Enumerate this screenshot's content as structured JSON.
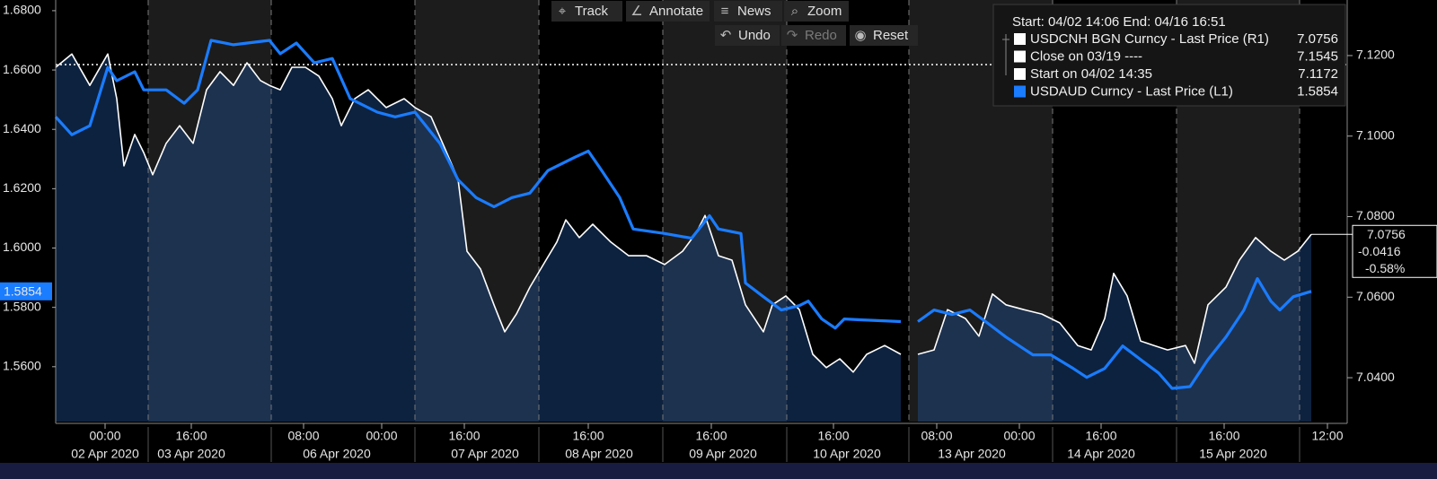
{
  "toolbar": {
    "row1": [
      "Track",
      "Annotate",
      "News",
      "Zoom"
    ],
    "row2": [
      "Undo",
      "Redo",
      "Reset"
    ]
  },
  "chart_data": {
    "type": "line",
    "xlim": [
      0,
      143.8
    ],
    "ylim": [
      1.5415,
      1.6836
    ],
    "y2lim": [
      7.0291,
      7.1338
    ],
    "yticks": [
      {
        "value": 1.56,
        "label": "1.5600"
      },
      {
        "value": 1.58,
        "label": "1.5800"
      },
      {
        "value": 1.6,
        "label": "1.6000"
      },
      {
        "value": 1.62,
        "label": "1.6200"
      },
      {
        "value": 1.64,
        "label": "1.6400"
      },
      {
        "value": 1.66,
        "label": "1.6600"
      },
      {
        "value": 1.68,
        "label": "1.6800"
      }
    ],
    "y2ticks": [
      {
        "value": 7.04,
        "label": "7.0400"
      },
      {
        "value": 7.06,
        "label": "7.0600"
      },
      {
        "value": 7.08,
        "label": "7.0800"
      },
      {
        "value": 7.1,
        "label": "7.1000"
      },
      {
        "value": 7.12,
        "label": "7.1200"
      }
    ],
    "xticks": [
      {
        "value": 5.5,
        "label": "00:00"
      },
      {
        "value": 15.1,
        "label": "16:00"
      },
      {
        "value": 27.6,
        "label": "08:00"
      },
      {
        "value": 36.3,
        "label": "00:00"
      },
      {
        "value": 45.5,
        "label": "16:00"
      },
      {
        "value": 59.3,
        "label": "16:00"
      },
      {
        "value": 73,
        "label": "16:00"
      },
      {
        "value": 86.6,
        "label": "16:00"
      },
      {
        "value": 98.1,
        "label": "08:00"
      },
      {
        "value": 107.3,
        "label": "00:00"
      },
      {
        "value": 116.4,
        "label": "16:00"
      },
      {
        "value": 130.1,
        "label": "16:00"
      },
      {
        "value": 141.6,
        "label": "12:00"
      }
    ],
    "date_labels": [
      {
        "value": 5.5,
        "label": "02 Apr 2020"
      },
      {
        "value": 15.1,
        "label": "03 Apr 2020"
      },
      {
        "value": 31.3,
        "label": "06 Apr 2020"
      },
      {
        "value": 47.8,
        "label": "07 Apr 2020"
      },
      {
        "value": 60.5,
        "label": "08 Apr 2020"
      },
      {
        "value": 74.3,
        "label": "09 Apr 2020"
      },
      {
        "value": 88.1,
        "label": "10 Apr 2020"
      },
      {
        "value": 102,
        "label": "13 Apr 2020"
      },
      {
        "value": 116.4,
        "label": "14 Apr 2020"
      },
      {
        "value": 131.1,
        "label": "15 Apr 2020"
      }
    ],
    "series": [
      {
        "name": "USDCNH BGN Curncy - Last Price (R1)",
        "color": "#ffffff",
        "axis": "y2",
        "x": [
          0,
          1.8,
          3.8,
          5.8,
          6.8,
          7.6,
          8.8,
          9.8,
          10.8,
          12.3,
          13.8,
          15.3,
          16.8,
          18.3,
          19.8,
          21.3,
          22.8,
          23.8,
          25,
          26.3,
          27.8,
          29.3,
          30.8,
          31.8,
          33.3,
          34.8,
          36.8,
          38.8,
          40,
          41.8,
          43.3,
          44.8,
          45.8,
          47.3,
          48.8,
          50,
          51.3,
          52.8,
          54.3,
          55.8,
          56.8,
          58.3,
          59.8,
          61.8,
          63.8,
          65.8,
          67.8,
          69.8,
          71.3,
          72.3,
          73.8,
          75.3,
          76.8,
          78.8,
          79.8,
          81.3,
          82.8,
          84.3,
          85.8,
          87.3,
          88.8,
          90.3,
          92.3,
          94.1,
          95,
          96,
          97.8,
          99.3,
          101.3,
          102.8,
          104.3,
          105.8,
          107.8,
          109.8,
          111.8,
          113.8,
          115.3,
          116.8,
          117.8,
          119.3,
          120.8,
          122.3,
          123.8,
          125.8,
          126.8,
          128.3,
          130.3,
          131.8,
          133.6,
          135.3,
          136.8,
          138.3,
          139.8
        ],
        "values": [
          7.1171,
          7.1204,
          7.1126,
          7.1204,
          7.1093,
          7.0926,
          7.1004,
          7.0959,
          7.0904,
          7.0982,
          7.1026,
          7.0982,
          7.1115,
          7.116,
          7.1126,
          7.1182,
          7.1138,
          7.1126,
          7.1115,
          7.1171,
          7.1171,
          7.1149,
          7.1093,
          7.1026,
          7.1093,
          7.1115,
          7.1071,
          7.1093,
          7.1071,
          7.1048,
          7.0971,
          7.0893,
          7.0714,
          7.067,
          7.0581,
          7.0514,
          7.0558,
          7.0625,
          7.0681,
          7.0737,
          7.0792,
          7.0748,
          7.0781,
          7.0737,
          7.0703,
          7.0703,
          7.0681,
          7.0714,
          7.0759,
          7.0803,
          7.0703,
          7.0692,
          7.0581,
          7.0514,
          7.0581,
          7.0603,
          7.0569,
          7.0458,
          7.0425,
          7.0447,
          7.0414,
          7.0458,
          7.048,
          7.0458,
          null,
          7.0458,
          7.0469,
          7.0569,
          7.0547,
          7.0503,
          7.0608,
          7.0581,
          7.0569,
          7.0558,
          7.0536,
          7.048,
          7.0469,
          7.0547,
          7.0659,
          7.0603,
          7.0491,
          7.048,
          7.0469,
          7.048,
          7.0436,
          7.0581,
          7.0625,
          7.0692,
          7.0748,
          7.0714,
          7.0692,
          7.0714,
          7.0756
        ]
      },
      {
        "name": "USDAUD Curncy - Last Price (L1)",
        "color": "#1a7cff",
        "axis": "y",
        "x": [
          0,
          1.8,
          3.8,
          5.8,
          6.8,
          8.8,
          9.8,
          12.3,
          14.3,
          15.8,
          17.3,
          19.8,
          23.8,
          25,
          26.8,
          28.8,
          30.8,
          32.8,
          35.8,
          37.8,
          40,
          42.8,
          44.8,
          46.8,
          48.8,
          50.8,
          52.8,
          54.8,
          57.8,
          59.3,
          60.8,
          62.8,
          64.3,
          67.8,
          70.8,
          72.8,
          73.8,
          76.3,
          76.8,
          78.8,
          80.8,
          82.8,
          83.8,
          85.3,
          86.8,
          87.8,
          89.8,
          94.1,
          95,
          96,
          97.8,
          99.8,
          101.8,
          103.8,
          105.8,
          108.8,
          110.8,
          113.3,
          114.8,
          116.8,
          118.8,
          120.8,
          122.8,
          124.3,
          126.3,
          128.3,
          130.3,
          132.3,
          133.8,
          135.3,
          136.3,
          137.8,
          139.8
        ],
        "values": [
          1.6442,
          1.6382,
          1.6412,
          1.6609,
          1.6564,
          1.6594,
          1.6533,
          1.6533,
          1.6488,
          1.6533,
          1.67,
          1.6685,
          1.67,
          1.6655,
          1.6691,
          1.6624,
          1.6639,
          1.6503,
          1.6458,
          1.6442,
          1.6458,
          1.6352,
          1.623,
          1.617,
          1.6139,
          1.617,
          1.6185,
          1.6261,
          1.6306,
          1.6327,
          1.6261,
          1.617,
          1.6064,
          1.6049,
          1.6033,
          1.6109,
          1.6064,
          1.6049,
          1.5882,
          1.5836,
          1.5791,
          1.5806,
          1.5821,
          1.5761,
          1.573,
          1.5761,
          1.5758,
          1.5752,
          null,
          1.5752,
          1.5791,
          1.5776,
          1.5791,
          1.5746,
          1.57,
          1.564,
          1.564,
          1.5594,
          1.5564,
          1.5594,
          1.567,
          1.5624,
          1.5579,
          1.5527,
          1.5533,
          1.5624,
          1.57,
          1.5791,
          1.5897,
          1.5821,
          1.5791,
          1.5836,
          1.5854
        ]
      }
    ],
    "legend": {
      "header": "Start: 04/02 14:06 End: 04/16 16:51",
      "extra": [
        {
          "label": "Close on 03/19 ----",
          "value": 7.1545
        },
        {
          "label": "Start on 04/02 14:35",
          "value": 7.1172
        }
      ]
    },
    "change_labels": [
      -0.0416,
      {
        "value": -0.58,
        "label": "-0.58%"
      }
    ]
  }
}
